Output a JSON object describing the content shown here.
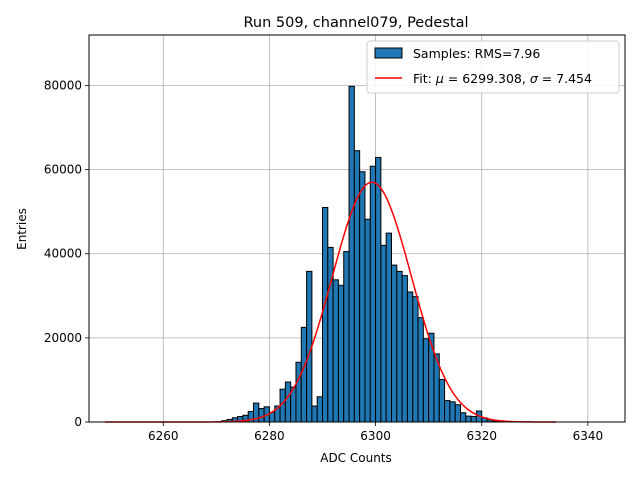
{
  "chart_data": {
    "type": "bar",
    "title": "Run 509, channel079, Pedestal",
    "xlabel": "ADC Counts",
    "ylabel": "Entries",
    "xlim": [
      6246,
      6347
    ],
    "ylim": [
      0,
      92000
    ],
    "xticks": [
      6260,
      6280,
      6300,
      6320,
      6340
    ],
    "yticks": [
      0,
      20000,
      40000,
      60000,
      80000
    ],
    "grid": true,
    "legend_position": "top-right",
    "bin_width": 1,
    "histogram": {
      "name": "Samples: RMS=7.96",
      "color": "#1f77b4",
      "bins": [
        6270,
        6271,
        6272,
        6273,
        6274,
        6275,
        6276,
        6277,
        6278,
        6279,
        6280,
        6281,
        6282,
        6283,
        6284,
        6285,
        6286,
        6287,
        6288,
        6289,
        6290,
        6291,
        6292,
        6293,
        6294,
        6295,
        6296,
        6297,
        6298,
        6299,
        6300,
        6301,
        6302,
        6303,
        6304,
        6305,
        6306,
        6307,
        6308,
        6309,
        6310,
        6311,
        6312,
        6313,
        6314,
        6315,
        6316,
        6317,
        6318,
        6319,
        6320,
        6321,
        6322,
        6323,
        6324,
        6325,
        6326,
        6327,
        6328,
        6329,
        6330
      ],
      "values": [
        80,
        300,
        600,
        1000,
        1300,
        1600,
        2500,
        4500,
        3200,
        3600,
        2300,
        3800,
        7800,
        9500,
        8300,
        14200,
        22500,
        35800,
        3800,
        6000,
        51000,
        41500,
        33800,
        32500,
        40500,
        79800,
        64500,
        59500,
        48200,
        60800,
        62900,
        42000,
        44900,
        37300,
        35800,
        34800,
        30900,
        29800,
        24800,
        19800,
        21100,
        16200,
        10100,
        5100,
        4800,
        4100,
        2200,
        1400,
        1300,
        2600,
        1000,
        500,
        200,
        150,
        80,
        60,
        40,
        30,
        20,
        10,
        5
      ]
    },
    "fit": {
      "name": "Fit: μ = 6299.308, σ = 7.454",
      "label_prefix": "Fit: ",
      "label_mu": "μ",
      "label_mu_rest": " = 6299.308, ",
      "label_sigma": "σ",
      "label_sigma_rest": " = 7.454",
      "color": "#ff0000",
      "mu": 6299.308,
      "sigma": 7.454,
      "amplitude": 57000,
      "x_range": [
        6249,
        6334
      ]
    }
  }
}
